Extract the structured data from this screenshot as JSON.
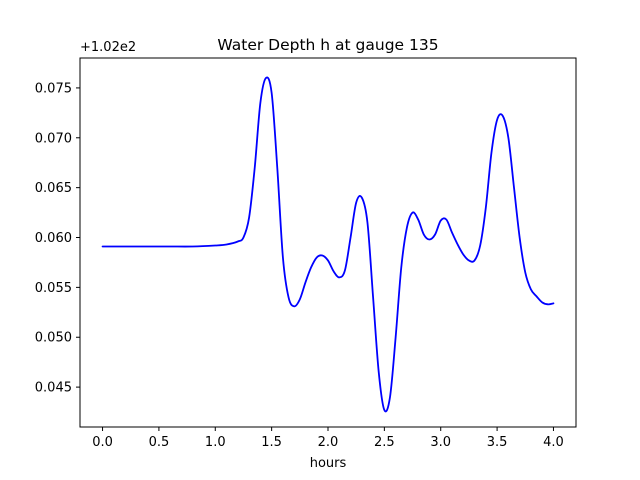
{
  "chart_data": {
    "type": "line",
    "title": "Water Depth h at gauge 135",
    "xlabel": "hours",
    "ylabel": "",
    "y_offset_label": "+1.02e2",
    "xlim": [
      -0.2,
      4.2
    ],
    "ylim": [
      0.041,
      0.078
    ],
    "x_ticks": [
      0.0,
      0.5,
      1.0,
      1.5,
      2.0,
      2.5,
      3.0,
      3.5,
      4.0
    ],
    "x_tick_labels": [
      "0.0",
      "0.5",
      "1.0",
      "1.5",
      "2.0",
      "2.5",
      "3.0",
      "3.5",
      "4.0"
    ],
    "y_ticks": [
      0.045,
      0.05,
      0.055,
      0.06,
      0.065,
      0.07,
      0.075
    ],
    "y_tick_labels": [
      "0.045",
      "0.050",
      "0.055",
      "0.060",
      "0.065",
      "0.070",
      "0.075"
    ],
    "grid": false,
    "legend": "none",
    "series": [
      {
        "color": "#0000ff",
        "x": [
          0.0,
          0.2,
          0.4,
          0.6,
          0.8,
          1.0,
          1.1,
          1.2,
          1.25,
          1.3,
          1.35,
          1.4,
          1.45,
          1.5,
          1.55,
          1.6,
          1.65,
          1.7,
          1.75,
          1.8,
          1.85,
          1.9,
          1.95,
          2.0,
          2.05,
          2.1,
          2.15,
          2.2,
          2.25,
          2.3,
          2.35,
          2.4,
          2.45,
          2.5,
          2.55,
          2.6,
          2.65,
          2.7,
          2.75,
          2.8,
          2.85,
          2.9,
          2.95,
          3.0,
          3.05,
          3.1,
          3.15,
          3.2,
          3.25,
          3.3,
          3.35,
          3.4,
          3.45,
          3.5,
          3.55,
          3.6,
          3.65,
          3.7,
          3.75,
          3.8,
          3.85,
          3.9,
          3.95,
          4.0
        ],
        "y": [
          0.0591,
          0.0591,
          0.0591,
          0.0591,
          0.0591,
          0.0592,
          0.0593,
          0.0596,
          0.06,
          0.062,
          0.067,
          0.0735,
          0.076,
          0.0745,
          0.067,
          0.058,
          0.054,
          0.0531,
          0.0538,
          0.0555,
          0.057,
          0.058,
          0.0582,
          0.0577,
          0.0566,
          0.056,
          0.0567,
          0.06,
          0.0635,
          0.064,
          0.0615,
          0.054,
          0.0465,
          0.0427,
          0.044,
          0.05,
          0.057,
          0.061,
          0.0625,
          0.0618,
          0.0603,
          0.0598,
          0.0603,
          0.0617,
          0.0618,
          0.0605,
          0.0593,
          0.0583,
          0.0577,
          0.0577,
          0.0592,
          0.063,
          0.0685,
          0.0718,
          0.0722,
          0.07,
          0.065,
          0.06,
          0.0565,
          0.0548,
          0.0541,
          0.0535,
          0.0533,
          0.0534
        ]
      }
    ]
  }
}
